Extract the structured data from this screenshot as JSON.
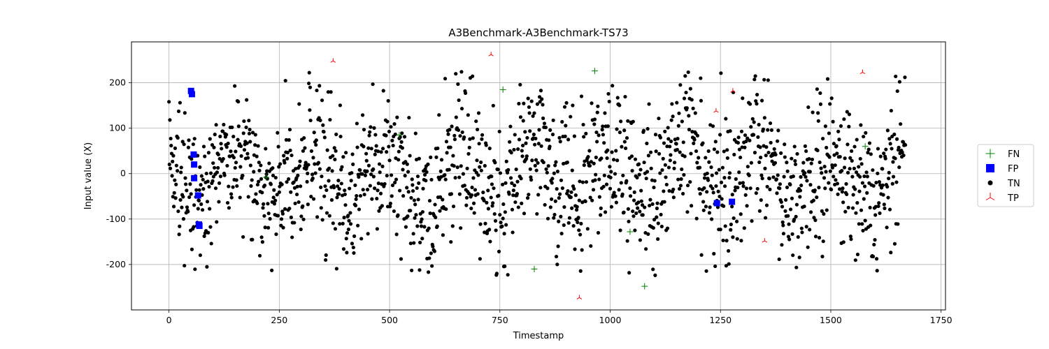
{
  "chart_data": {
    "type": "scatter",
    "title": "A3Benchmark-A3Benchmark-TS73",
    "xlabel": "Timestamp",
    "ylabel": "Input value (X)",
    "xlim": [
      -85,
      1760
    ],
    "ylim": [
      -300,
      290
    ],
    "xticks": [
      0,
      250,
      500,
      750,
      1000,
      1250,
      1500,
      1750
    ],
    "yticks": [
      -200,
      -100,
      0,
      100,
      200
    ],
    "grid": true,
    "legend": "outside-right",
    "tn_generator": {
      "n": 1670,
      "seed": 73,
      "sin1_amp": 55,
      "sin1_period": 168,
      "sin2_amp": 18,
      "sin2_period": 24,
      "noise_sd": 80,
      "clip": 225
    },
    "series": [
      {
        "name": "FN",
        "marker": "plus",
        "color": "#008000",
        "points": [
          [
            220,
            -8
          ],
          [
            522,
            85
          ],
          [
            757,
            185
          ],
          [
            828,
            -210
          ],
          [
            965,
            226
          ],
          [
            1045,
            -128
          ],
          [
            1078,
            -248
          ],
          [
            1578,
            60
          ]
        ]
      },
      {
        "name": "FP",
        "marker": "square",
        "color": "#0000ff",
        "points": [
          [
            50,
            182
          ],
          [
            52,
            175
          ],
          [
            56,
            42
          ],
          [
            57,
            20
          ],
          [
            57,
            -10
          ],
          [
            66,
            -48
          ],
          [
            68,
            -112
          ],
          [
            69,
            -115
          ],
          [
            1242,
            -65
          ],
          [
            1276,
            -62
          ]
        ]
      },
      {
        "name": "TN",
        "marker": "circle",
        "color": "#000000"
      },
      {
        "name": "TP",
        "marker": "tri",
        "color": "#ff0000",
        "points": [
          [
            372,
            248
          ],
          [
            730,
            262
          ],
          [
            930,
            -273
          ],
          [
            1240,
            138
          ],
          [
            1278,
            182
          ],
          [
            1350,
            -148
          ],
          [
            1572,
            223
          ]
        ]
      }
    ]
  }
}
